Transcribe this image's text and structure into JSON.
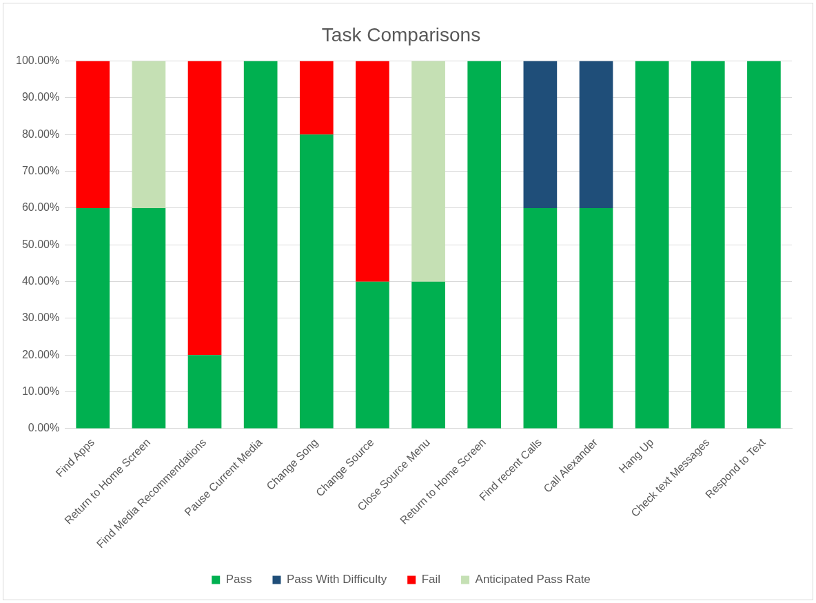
{
  "chart_data": {
    "type": "bar",
    "title": "Task Comparisons",
    "stacked": true,
    "categories": [
      "Find Apps",
      "Return to Home Screen",
      "Find Media Recommendations",
      "Pause Current Media",
      "Change Song",
      "Change Source",
      "Close Source Menu",
      "Return to Home Screen",
      "Find recent Calls",
      "Call Alexander",
      "Hang Up",
      "Check text Messages",
      "Respond to Text"
    ],
    "series": [
      {
        "name": "Pass",
        "color": "#00b050",
        "values": [
          60,
          60,
          20,
          100,
          80,
          40,
          40,
          100,
          60,
          60,
          100,
          100,
          100
        ]
      },
      {
        "name": "Pass With Difficulty",
        "color": "#1f4e79",
        "values": [
          null,
          null,
          null,
          null,
          null,
          null,
          null,
          null,
          40,
          40,
          null,
          null,
          null
        ]
      },
      {
        "name": "Fail",
        "color": "#ff0000",
        "values": [
          40,
          null,
          80,
          null,
          20,
          60,
          null,
          null,
          null,
          null,
          null,
          null,
          null
        ]
      },
      {
        "name": "Anticipated Pass Rate",
        "color": "#c5e0b4",
        "values": [
          null,
          40,
          null,
          null,
          null,
          null,
          60,
          null,
          null,
          null,
          null,
          null,
          null
        ]
      }
    ],
    "ylim": [
      0,
      100
    ],
    "yticks": [
      {
        "value": 0,
        "label": "0.00%"
      },
      {
        "value": 10,
        "label": "10.00%"
      },
      {
        "value": 20,
        "label": "20.00%"
      },
      {
        "value": 30,
        "label": "30.00%"
      },
      {
        "value": 40,
        "label": "40.00%"
      },
      {
        "value": 50,
        "label": "50.00%"
      },
      {
        "value": 60,
        "label": "60.00%"
      },
      {
        "value": 70,
        "label": "70.00%"
      },
      {
        "value": 80,
        "label": "80.00%"
      },
      {
        "value": 90,
        "label": "90.00%"
      },
      {
        "value": 100,
        "label": "100.00%"
      }
    ],
    "grid": "y",
    "legend": "bottom"
  }
}
